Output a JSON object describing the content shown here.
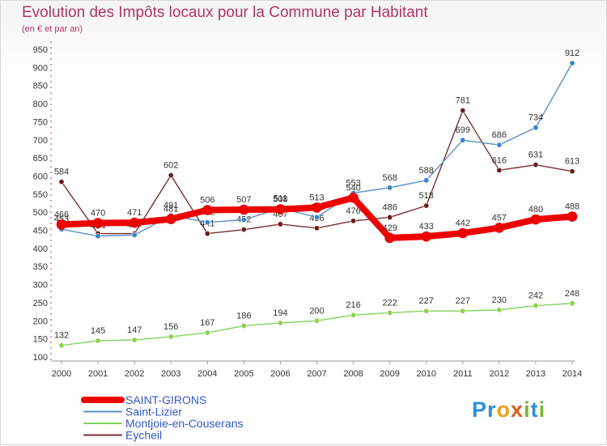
{
  "title": "Evolution des Impôts locaux pour la Commune par Habitant",
  "subtitle": "(en € et par an)",
  "brand": {
    "text": "Proxiti",
    "letters": [
      {
        "ch": "P",
        "color": "#2f8fd8"
      },
      {
        "ch": "r",
        "color": "#2f8fd8"
      },
      {
        "ch": "o",
        "color": "#e9a21a"
      },
      {
        "ch": "x",
        "color": "#e05a1c"
      },
      {
        "ch": "i",
        "color": "#7ab638"
      },
      {
        "ch": "t",
        "color": "#2f8fd8"
      },
      {
        "ch": "i",
        "color": "#7ab638"
      }
    ]
  },
  "chart_data": {
    "type": "line",
    "title": "Evolution des Impôts locaux pour la Commune par Habitant",
    "ylabel": "(en € et par an)",
    "ylim": [
      100,
      950
    ],
    "yticks": [
      100,
      150,
      200,
      250,
      300,
      350,
      400,
      450,
      500,
      550,
      600,
      650,
      700,
      750,
      800,
      850,
      900,
      950
    ],
    "grid": false,
    "legend": "bottom-left",
    "x": [
      "2000",
      "2001",
      "2002",
      "2003",
      "2004",
      "2005",
      "2006",
      "2007",
      "2008",
      "2009",
      "2010",
      "2011",
      "2012",
      "2013",
      "2014"
    ],
    "series": [
      {
        "name": "Montjoie-en-Couserans",
        "color": "#7fd35a",
        "marker": "#8ed14c",
        "width": 1.4,
        "values": [
          132,
          145,
          147,
          156,
          167,
          186,
          194,
          200,
          216,
          222,
          227,
          227,
          230,
          242,
          248
        ]
      },
      {
        "name": "Eycheil",
        "color": "#7a2e2e",
        "marker": "#6e1c1c",
        "width": 1.4,
        "values": [
          584,
          441,
          441,
          602,
          441,
          452,
          467,
          456,
          476,
          486,
          518,
          781,
          616,
          631,
          613
        ]
      },
      {
        "name": "Saint-Lizier",
        "color": "#5a8fc4",
        "marker": "#3a85cc",
        "width": 1.4,
        "values": [
          453,
          434,
          437,
          491,
          472,
          479,
          511,
          486,
          553,
          568,
          588,
          699,
          686,
          734,
          912
        ]
      },
      {
        "name": "SAINT-GIRONS",
        "color": "#ee0000",
        "marker": "#ee0000",
        "width": 8,
        "values": [
          466,
          470,
          471,
          481,
          506,
          507,
          508,
          513,
          540,
          429,
          433,
          442,
          457,
          480,
          488
        ]
      }
    ],
    "legend_order": [
      "SAINT-GIRONS",
      "Saint-Lizier",
      "Montjoie-en-Couserans",
      "Eycheil"
    ]
  }
}
